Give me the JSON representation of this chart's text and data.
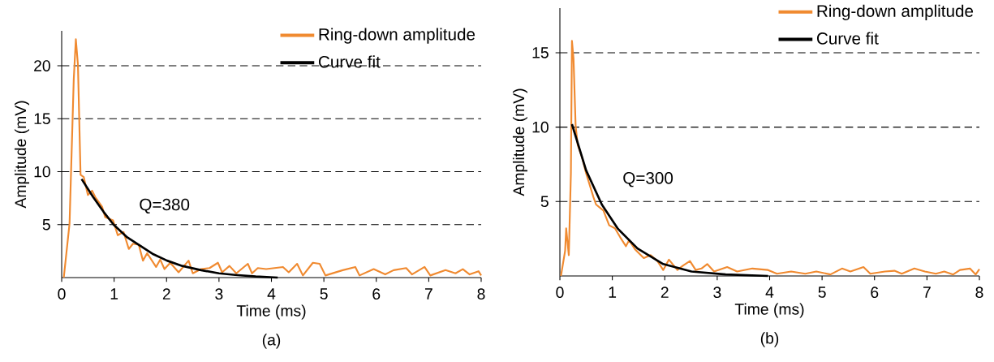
{
  "chart_data": [
    {
      "type": "line",
      "xlabel": "Time (ms)",
      "ylabel": "Amplitude (mV)",
      "xlim": [
        0,
        8
      ],
      "ylim": [
        0,
        23.3
      ],
      "xticks": [
        0,
        1,
        2,
        3,
        4,
        5,
        6,
        7,
        8
      ],
      "yticks": [
        5,
        10,
        15,
        20
      ],
      "grid": "y",
      "legend": "top right",
      "annotations": [
        "Q=380",
        "(a)"
      ],
      "series": [
        {
          "name": "Ring-down amplitude",
          "color": "#f08a30",
          "x": [
            0.04,
            0.15,
            0.23,
            0.27,
            0.31,
            0.36,
            0.42,
            0.5,
            0.58,
            0.64,
            0.77,
            0.83,
            0.98,
            1.07,
            1.18,
            1.28,
            1.36,
            1.47,
            1.55,
            1.63,
            1.8,
            1.88,
            1.96,
            2.07,
            2.23,
            2.42,
            2.5,
            2.66,
            2.82,
            2.98,
            3.06,
            3.2,
            3.33,
            3.55,
            3.63,
            3.74,
            3.9,
            4.06,
            4.22,
            4.33,
            4.49,
            4.6,
            4.79,
            4.92,
            5.03,
            5.36,
            5.6,
            5.68,
            5.95,
            6.17,
            6.33,
            6.57,
            6.68,
            6.92,
            7.03,
            7.32,
            7.51,
            7.65,
            7.78,
            7.95,
            8.0
          ],
          "values": [
            0,
            5.1,
            18.7,
            22.5,
            20.1,
            9.7,
            9.5,
            7.8,
            8.2,
            7.6,
            6.7,
            5.7,
            5.4,
            4.0,
            4.3,
            2.7,
            3.2,
            3.1,
            1.6,
            2.3,
            1.0,
            1.7,
            0.8,
            1.4,
            0.5,
            1.6,
            0.4,
            0.8,
            0.9,
            1.4,
            0.5,
            1.1,
            0.4,
            1.3,
            0.4,
            0.9,
            0.8,
            0.9,
            1.0,
            0.5,
            1.3,
            0.2,
            1.4,
            1.3,
            0.2,
            0.7,
            1.0,
            0.2,
            0.8,
            0.3,
            0.7,
            0.9,
            0.3,
            1.0,
            0.2,
            0.7,
            0.4,
            0.8,
            0.3,
            0.6,
            0.2
          ]
        },
        {
          "name": "Curve fit",
          "color": "#000000",
          "x": [
            0.38,
            0.6,
            0.8,
            0.99,
            1.25,
            1.53,
            1.75,
            2.01,
            2.3,
            2.66,
            3.0,
            3.31,
            3.7,
            4.12
          ],
          "values": [
            9.3,
            7.6,
            6.2,
            5.0,
            3.8,
            2.9,
            2.2,
            1.6,
            1.1,
            0.7,
            0.4,
            0.25,
            0.1,
            0
          ]
        }
      ]
    },
    {
      "type": "line",
      "xlabel": "Time (ms)",
      "ylabel": "Amplitude (mV)",
      "xlim": [
        0,
        8
      ],
      "ylim": [
        0,
        18
      ],
      "xticks": [
        0,
        1,
        2,
        3,
        4,
        5,
        6,
        7,
        8
      ],
      "yticks": [
        5,
        10,
        15
      ],
      "grid": "y",
      "legend": "top right",
      "annotations": [
        "Q=300",
        "(b)"
      ],
      "series": [
        {
          "name": "Ring-down amplitude",
          "color": "#f08a30",
          "x": [
            0.02,
            0.1,
            0.12,
            0.17,
            0.21,
            0.23,
            0.26,
            0.3,
            0.34,
            0.42,
            0.5,
            0.64,
            0.69,
            0.83,
            0.94,
            1.05,
            1.15,
            1.26,
            1.32,
            1.43,
            1.6,
            1.73,
            1.86,
            1.97,
            2.08,
            2.24,
            2.35,
            2.48,
            2.59,
            2.7,
            2.81,
            2.94,
            3.19,
            3.38,
            3.67,
            3.97,
            4.14,
            4.41,
            4.68,
            4.89,
            5.16,
            5.38,
            5.54,
            5.79,
            5.92,
            6.2,
            6.38,
            6.52,
            6.76,
            6.96,
            7.17,
            7.33,
            7.5,
            7.63,
            7.82,
            7.93,
            8.0
          ],
          "values": [
            0,
            1.7,
            3.2,
            1.4,
            6.9,
            15.8,
            14.6,
            10.1,
            8.8,
            8.0,
            6.9,
            5.3,
            4.8,
            4.4,
            3.4,
            3.2,
            2.6,
            2.0,
            2.4,
            1.8,
            1.2,
            1.4,
            1.0,
            0.4,
            1.1,
            0.4,
            0.7,
            1.0,
            0.4,
            0.5,
            0.8,
            0.3,
            0.6,
            0.3,
            0.5,
            0.4,
            0.15,
            0.3,
            0.15,
            0.3,
            0.1,
            0.5,
            0.3,
            0.6,
            0.15,
            0.3,
            0.35,
            0.15,
            0.5,
            0.3,
            0.15,
            0.3,
            0.1,
            0.4,
            0.5,
            0.1,
            0.45
          ]
        },
        {
          "name": "Curve fit",
          "color": "#000000",
          "x": [
            0.23,
            0.5,
            0.8,
            1.1,
            1.48,
            1.97,
            2.51,
            3.16,
            3.97
          ],
          "values": [
            10.2,
            7.1,
            4.8,
            3.2,
            1.85,
            0.8,
            0.3,
            0.1,
            0
          ]
        }
      ]
    }
  ]
}
